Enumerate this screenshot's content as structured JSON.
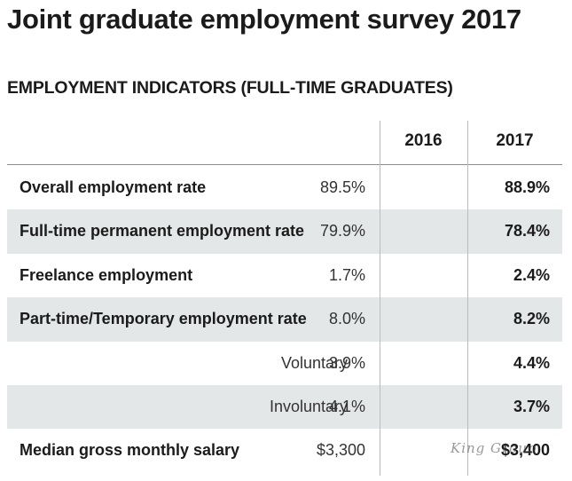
{
  "title": "Joint graduate employment survey 2017",
  "subtitle": "EMPLOYMENT INDICATORS (FULL-TIME GRADUATES)",
  "watermark": "King Group",
  "chart_data": {
    "type": "table",
    "title": "Joint graduate employment survey 2017",
    "subtitle": "EMPLOYMENT INDICATORS (FULL-TIME GRADUATES)",
    "columns": [
      "",
      "2016",
      "2017"
    ],
    "rows": [
      {
        "label": "Overall employment rate",
        "indent": false,
        "shaded": false,
        "v2016": "89.5%",
        "v2017": "88.9%"
      },
      {
        "label": "Full-time permanent employment rate",
        "indent": false,
        "shaded": true,
        "v2016": "79.9%",
        "v2017": "78.4%"
      },
      {
        "label": "Freelance employment",
        "indent": false,
        "shaded": false,
        "v2016": "1.7%",
        "v2017": "2.4%"
      },
      {
        "label": "Part-time/Temporary employment rate",
        "indent": false,
        "shaded": true,
        "v2016": "8.0%",
        "v2017": "8.2%"
      },
      {
        "label": "Voluntary",
        "indent": true,
        "shaded": false,
        "v2016": "3.9%",
        "v2017": "4.4%"
      },
      {
        "label": "Involuntary",
        "indent": true,
        "shaded": true,
        "v2016": "4.1%",
        "v2017": "3.7%"
      },
      {
        "label": "Median gross monthly salary",
        "indent": false,
        "shaded": false,
        "v2016": "$3,300",
        "v2017": "$3,400"
      }
    ],
    "colors": {
      "shaded_row": "#e4e7e8",
      "text": "#1b1b1b",
      "divider": "#b8bcbf"
    }
  }
}
